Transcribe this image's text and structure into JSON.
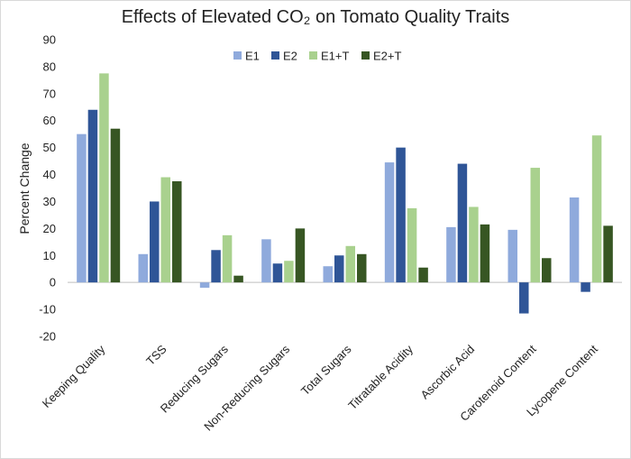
{
  "chart_data": {
    "type": "bar",
    "title": "Effects of Elevated CO₂ on Tomato Quality Traits",
    "xlabel": "",
    "ylabel": "Percent Change",
    "ylim": [
      -20,
      90
    ],
    "yticks": [
      -20,
      -10,
      0,
      10,
      20,
      30,
      40,
      50,
      60,
      70,
      80,
      90
    ],
    "grid": false,
    "legend_position": "top-center",
    "categories": [
      "Keeping Quality",
      "TSS",
      "Reducing Sugars",
      "Non-Reducing Sugars",
      "Total Sugars",
      "Titratable Acidity",
      "Ascorbic Acid",
      "Carotenoid Content",
      "Lycopene Content"
    ],
    "series": [
      {
        "name": "E1",
        "color": "#8faadc",
        "values": [
          55,
          10.5,
          -2,
          16,
          6,
          44.5,
          20.5,
          19.5,
          31.5
        ]
      },
      {
        "name": "E2",
        "color": "#2f5597",
        "values": [
          64,
          30,
          12,
          7,
          10,
          50,
          44,
          -11.5,
          -3.5
        ]
      },
      {
        "name": "E1+T",
        "color": "#a9d18e",
        "values": [
          77.5,
          39,
          17.5,
          8,
          13.5,
          27.5,
          28,
          42.5,
          54.5
        ]
      },
      {
        "name": "E2+T",
        "color": "#375623",
        "values": [
          57,
          37.5,
          2.5,
          20,
          10.5,
          5.5,
          21.5,
          9,
          21
        ]
      }
    ]
  }
}
